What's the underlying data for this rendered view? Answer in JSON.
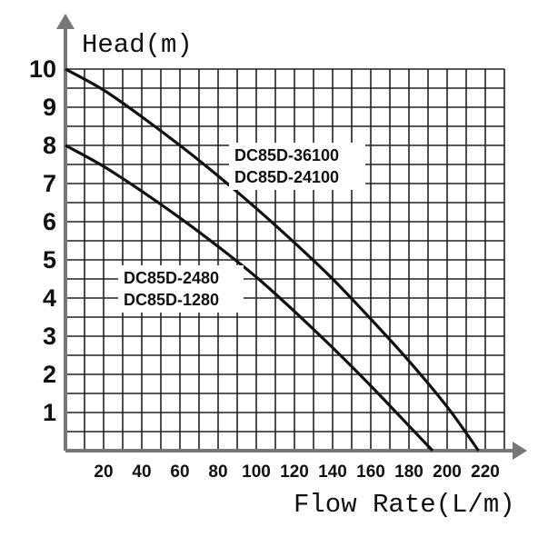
{
  "chart_data": {
    "type": "line",
    "title": "",
    "ylabel": "Head(m)",
    "xlabel": "Flow Rate(L/m)",
    "xlim": [
      0,
      230
    ],
    "ylim": [
      0,
      10
    ],
    "x_ticks": [
      "20",
      "40",
      "60",
      "80",
      "100",
      "120",
      "140",
      "160",
      "180",
      "200",
      "220"
    ],
    "y_ticks": [
      "1",
      "2",
      "3",
      "4",
      "5",
      "6",
      "7",
      "8",
      "9",
      "10"
    ],
    "grid": true,
    "grid_x_step": 10,
    "grid_y_step": 0.5,
    "series": [
      {
        "labels": [
          "DC85D-36100",
          "DC85D-24100"
        ],
        "x": [
          0,
          20,
          40,
          60,
          80,
          100,
          120,
          140,
          160,
          180,
          200,
          220,
          224
        ],
        "y": [
          10,
          9.45,
          8.75,
          8.0,
          7.2,
          6.35,
          5.45,
          4.5,
          3.45,
          2.35,
          1.15,
          -0.25,
          -0.1
        ]
      },
      {
        "labels": [
          "DC85D-2480",
          "DC85D-1280"
        ],
        "x": [
          0,
          20,
          40,
          60,
          80,
          100,
          120,
          140,
          160,
          180,
          200
        ],
        "y": [
          8,
          7.45,
          6.8,
          6.1,
          5.35,
          4.55,
          3.65,
          2.7,
          1.7,
          0.65,
          -0.4
        ]
      }
    ]
  }
}
